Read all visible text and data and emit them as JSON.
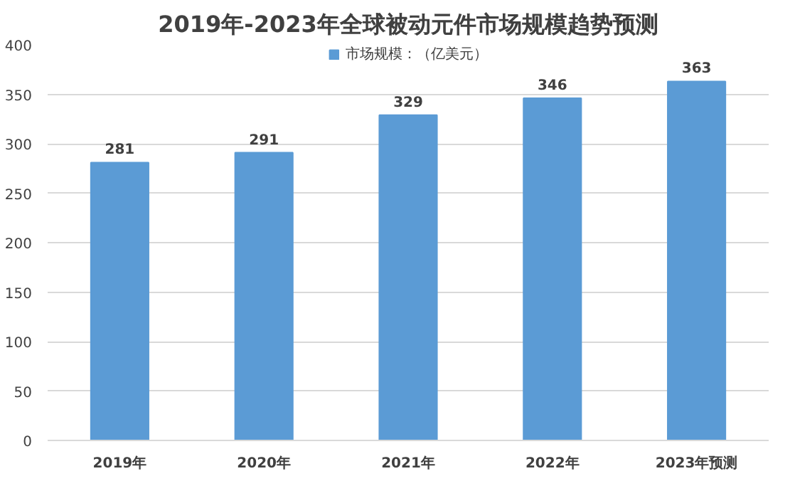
{
  "chart_data": {
    "type": "bar",
    "title": "2019年-2023年全球被动元件市场规模趋势预测",
    "categories": [
      "2019年",
      "2020年",
      "2021年",
      "2022年",
      "2023年预测"
    ],
    "series": [
      {
        "name": "市场规模：（亿美元）",
        "color": "#5b9bd5",
        "values": [
          281,
          291,
          329,
          346,
          363
        ]
      }
    ],
    "ylim": [
      0,
      400
    ],
    "yticks": [
      0,
      50,
      100,
      150,
      200,
      250,
      300,
      350,
      400
    ],
    "grid": "y",
    "legend": "top",
    "data_labels": true
  }
}
